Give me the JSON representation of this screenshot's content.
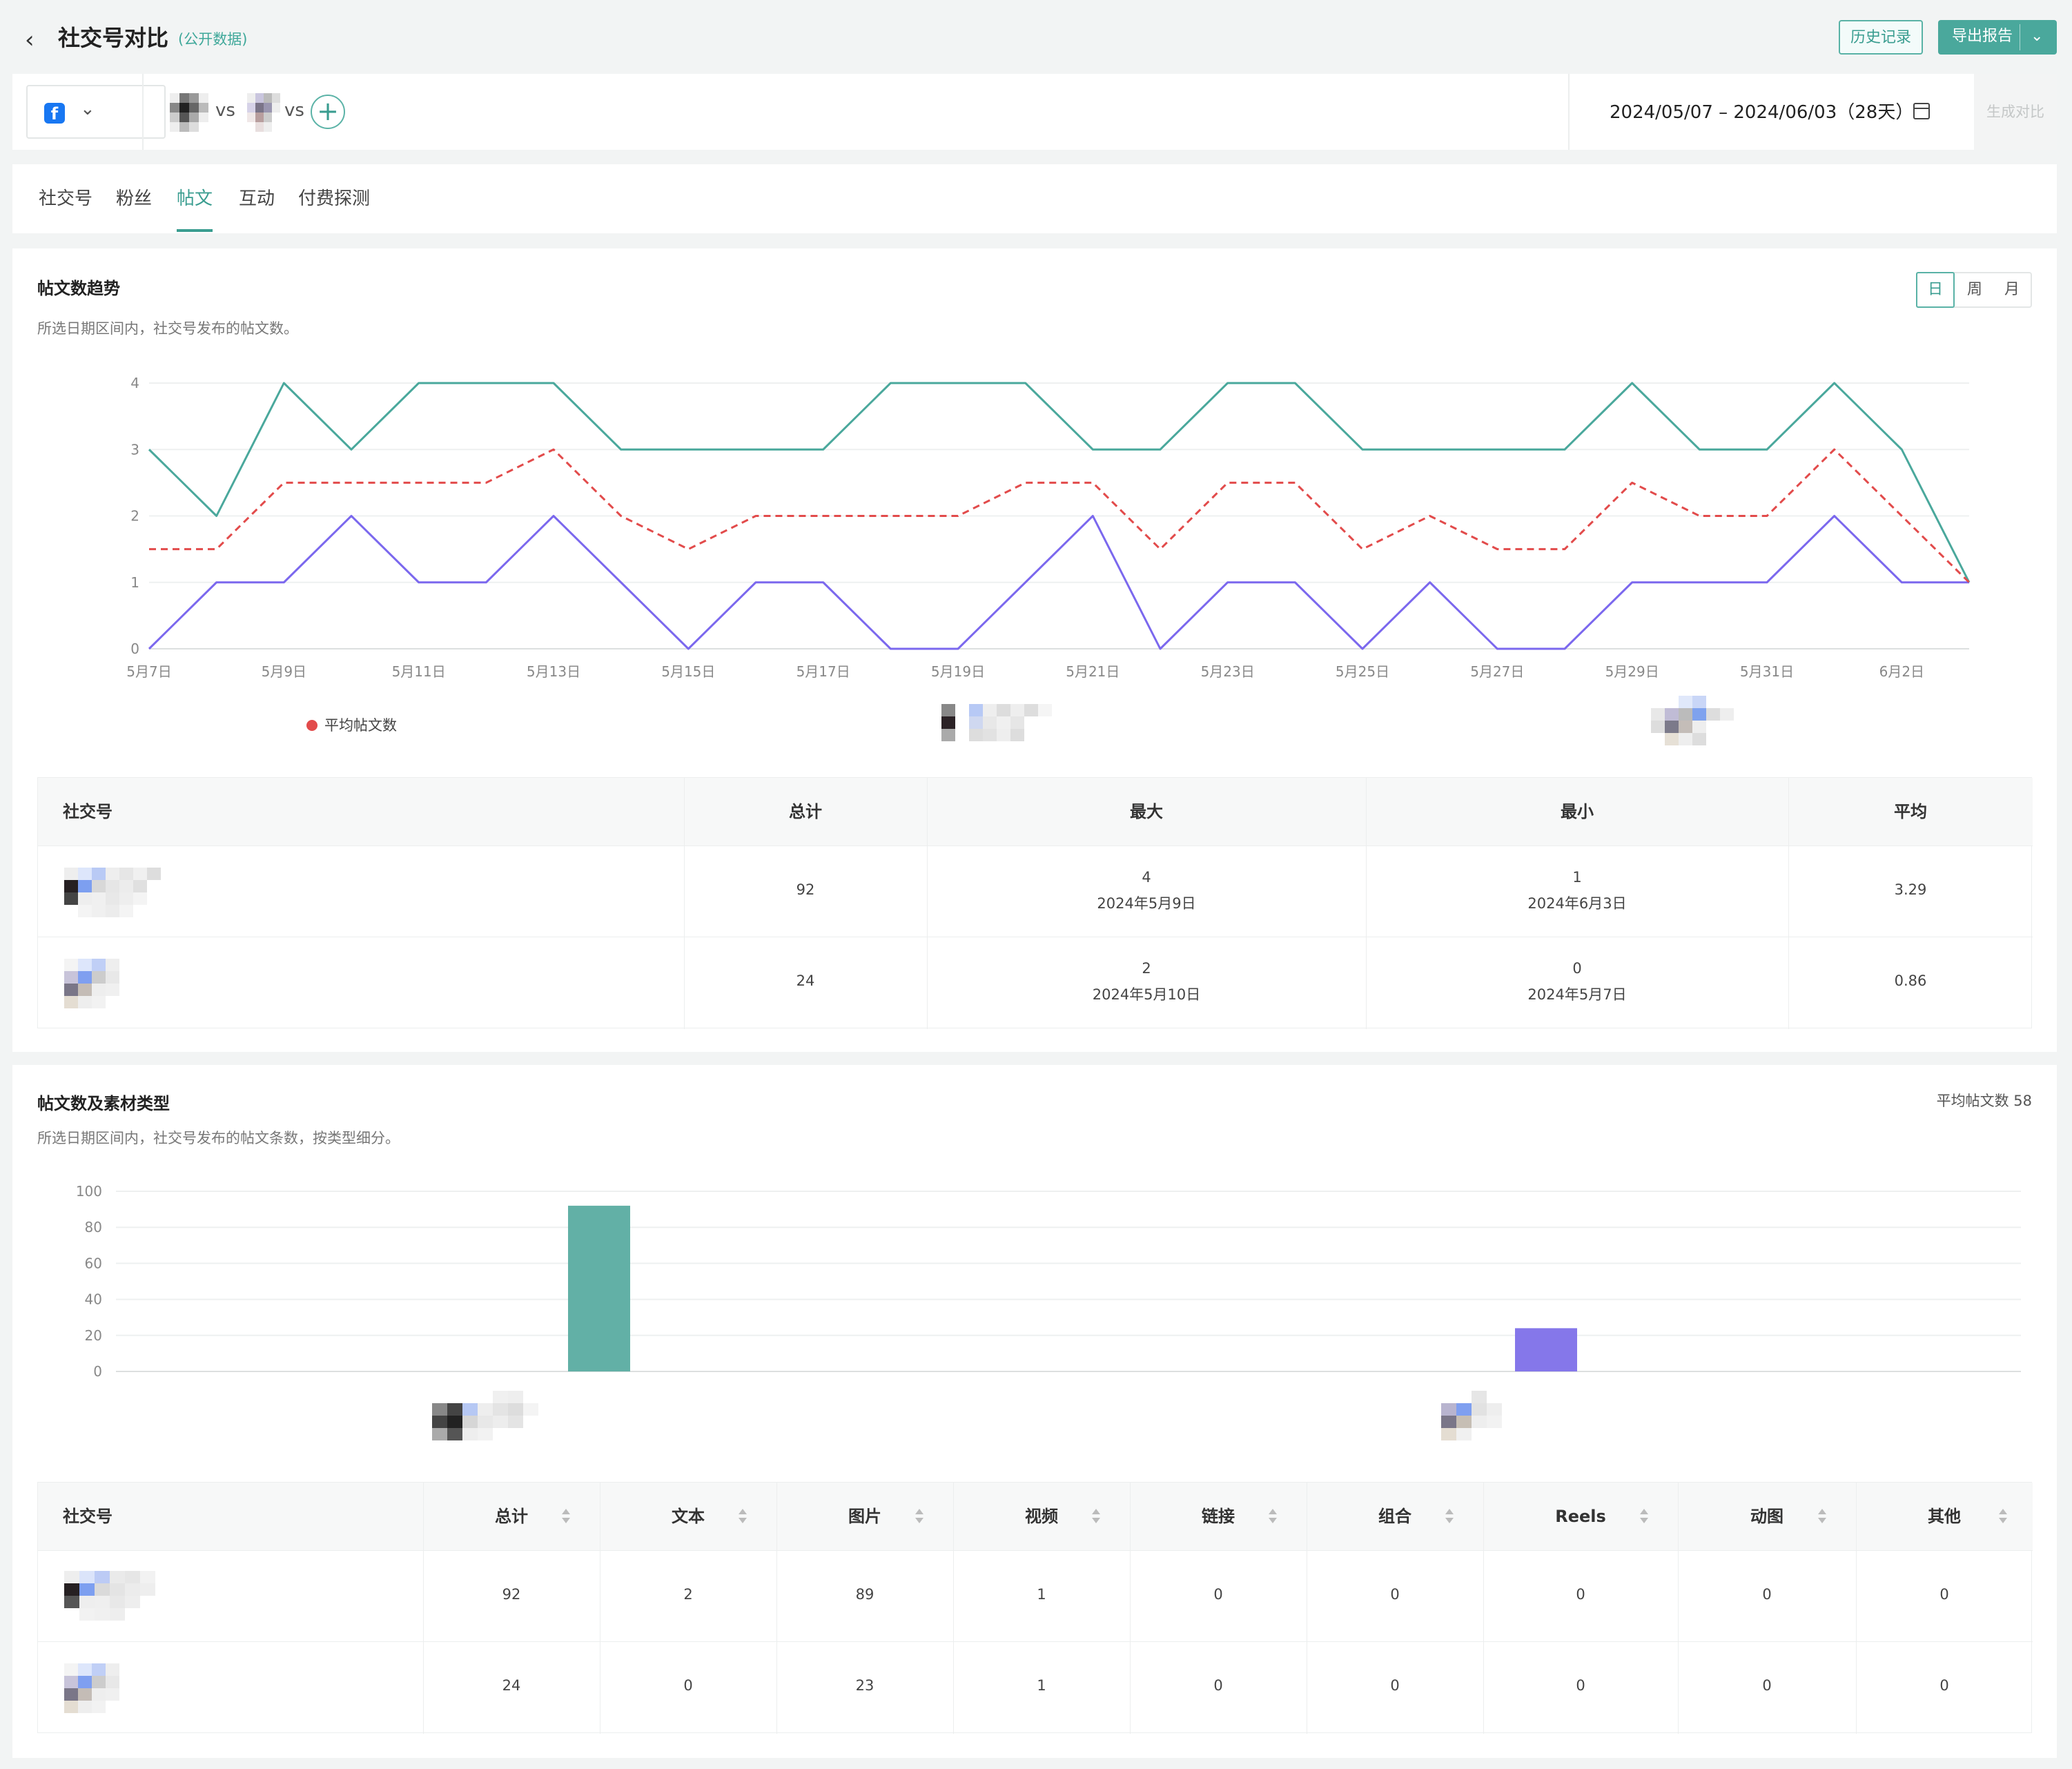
{
  "header": {
    "title": "社交号对比",
    "subtitle": "(公开数据)",
    "history_label": "历史记录",
    "export_label": "导出报告"
  },
  "selector": {
    "platform_icon": "f",
    "vs_label": "vs",
    "add_label": "+",
    "date_range": "2024/05/07 – 2024/06/03（28天）",
    "generate_label": "生成对比"
  },
  "tabs": [
    {
      "label": "社交号"
    },
    {
      "label": "粉丝"
    },
    {
      "label": "帖文"
    },
    {
      "label": "互动"
    },
    {
      "label": "付费探测"
    }
  ],
  "trend": {
    "title": "帖文数趋势",
    "desc": "所选日期区间内，社交号发布的帖文数。",
    "periods": [
      "日",
      "周",
      "月"
    ],
    "legend_avg": "平均帖文数",
    "chart_data": {
      "type": "line",
      "categories": [
        "5月7日",
        "5月8日",
        "5月9日",
        "5月10日",
        "5月11日",
        "5月12日",
        "5月13日",
        "5月14日",
        "5月15日",
        "5月16日",
        "5月17日",
        "5月18日",
        "5月19日",
        "5月20日",
        "5月21日",
        "5月22日",
        "5月23日",
        "5月24日",
        "5月25日",
        "5月26日",
        "5月27日",
        "5月28日",
        "5月29日",
        "5月30日",
        "5月31日",
        "6月1日",
        "6月2日",
        "6月3日"
      ],
      "tick_labels": [
        "5月7日",
        "5月9日",
        "5月11日",
        "5月13日",
        "5月15日",
        "5月17日",
        "5月19日",
        "5月21日",
        "5月23日",
        "5月25日",
        "5月27日",
        "5月29日",
        "5月31日",
        "6月2日"
      ],
      "y_ticks": [
        "0",
        "1",
        "2",
        "3",
        "4"
      ],
      "ylim": [
        0,
        4
      ],
      "series": [
        {
          "color": "#4aa89c",
          "dashed": false,
          "values": [
            3,
            2,
            4,
            3,
            4,
            4,
            4,
            3,
            3,
            3,
            3,
            4,
            4,
            4,
            3,
            3,
            4,
            4,
            3,
            3,
            3,
            3,
            4,
            3,
            3,
            4,
            3,
            1
          ]
        },
        {
          "color": "#7b68ee",
          "dashed": false,
          "values": [
            0,
            1,
            1,
            2,
            1,
            1,
            2,
            1,
            0,
            1,
            1,
            0,
            0,
            1,
            2,
            0,
            1,
            1,
            0,
            1,
            0,
            0,
            1,
            1,
            1,
            2,
            1,
            1
          ]
        },
        {
          "name": "平均帖文数",
          "color": "#e24b4b",
          "dashed": true,
          "values": [
            1.5,
            1.5,
            2.5,
            2.5,
            2.5,
            2.5,
            3,
            2,
            1.5,
            2,
            2,
            2,
            2,
            2.5,
            2.5,
            1.5,
            2.5,
            2.5,
            1.5,
            2,
            1.5,
            1.5,
            2.5,
            2,
            2,
            3,
            2,
            1
          ]
        }
      ]
    },
    "table": {
      "headers": [
        "社交号",
        "总计",
        "最大",
        "最小",
        "平均"
      ],
      "rows": [
        {
          "total": "92",
          "max": "4",
          "max_date": "2024年5月9日",
          "min": "1",
          "min_date": "2024年6月3日",
          "avg": "3.29"
        },
        {
          "total": "24",
          "max": "2",
          "max_date": "2024年5月10日",
          "min": "0",
          "min_date": "2024年5月7日",
          "avg": "0.86"
        }
      ]
    }
  },
  "types": {
    "title": "帖文数及素材类型",
    "desc": "所选日期区间内，社交号发布的帖文条数，按类型细分。",
    "avg_label": "平均帖文数 58",
    "chart_data": {
      "type": "bar",
      "y_ticks": [
        "0",
        "20",
        "40",
        "60",
        "80",
        "100"
      ],
      "ylim": [
        0,
        100
      ],
      "values": [
        92,
        24
      ],
      "colors": [
        "#62b0a6",
        "#8577ea"
      ]
    },
    "table": {
      "headers": [
        "社交号",
        "总计",
        "文本",
        "图片",
        "视频",
        "链接",
        "组合",
        "Reels",
        "动图",
        "其他"
      ],
      "rows": [
        [
          "92",
          "2",
          "89",
          "1",
          "0",
          "0",
          "0",
          "0",
          "0"
        ],
        [
          "24",
          "0",
          "23",
          "1",
          "0",
          "0",
          "0",
          "0",
          "0"
        ]
      ]
    }
  }
}
